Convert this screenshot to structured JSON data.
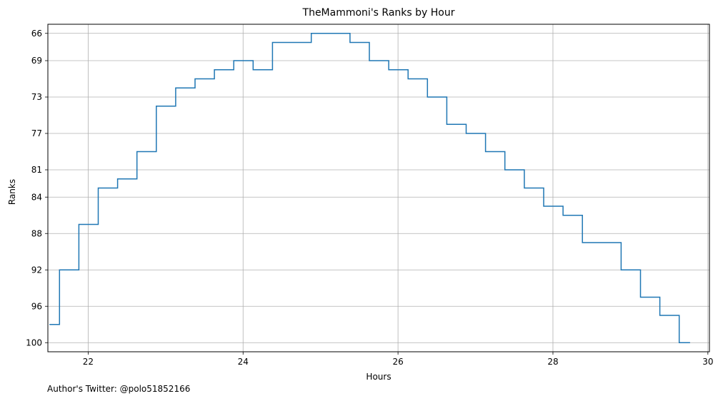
{
  "chart_data": {
    "type": "line",
    "step": "post",
    "title": "TheMammoni's Ranks by Hour",
    "xlabel": "Hours",
    "ylabel": "Ranks",
    "xlim": [
      21.48,
      30.02
    ],
    "ylim": [
      101,
      65
    ],
    "y_inverted": true,
    "xticks": [
      22,
      24,
      26,
      28,
      30
    ],
    "yticks": [
      66,
      69,
      73,
      77,
      81,
      84,
      88,
      92,
      96,
      100
    ],
    "grid": true,
    "line_color": "#1f77b4",
    "series": [
      {
        "x": [
          21.5,
          21.63,
          21.88,
          22.13,
          22.38,
          22.63,
          22.88,
          23.13,
          23.38,
          23.63,
          23.88,
          24.13,
          24.38,
          24.63,
          24.88,
          25.13,
          25.38,
          25.63,
          25.88,
          26.13,
          26.38,
          26.63,
          26.88,
          27.13,
          27.38,
          27.63,
          27.88,
          28.13,
          28.38,
          28.63,
          28.88,
          29.13,
          29.38,
          29.63,
          29.77
        ],
        "y": [
          98,
          92,
          87,
          83,
          82,
          79,
          74,
          72,
          71,
          70,
          69,
          70,
          67,
          67,
          66,
          66,
          67,
          69,
          70,
          71,
          73,
          76,
          77,
          79,
          81,
          83,
          85,
          86,
          89,
          89,
          92,
          95,
          97,
          100,
          100
        ]
      }
    ]
  },
  "footer": {
    "author": "Author's Twitter: @polo51852166"
  }
}
